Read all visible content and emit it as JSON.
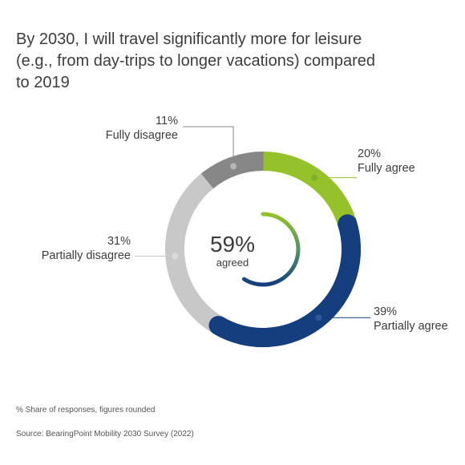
{
  "title_lines": [
    "By 2030, I will travel significantly more for leisure",
    "(e.g., from day-trips to longer vacations) compared",
    "to 2019"
  ],
  "center": {
    "value": "59%",
    "caption": "agreed",
    "fraction": 0.59
  },
  "footnote": "% Share of responses, figures rounded",
  "source": "Source: BearingPoint Mobility 2030 Survey (2022)",
  "chart_data": {
    "type": "pie",
    "donut": true,
    "slices": [
      {
        "label": "Fully agree",
        "pct_label": "20%",
        "value": 20,
        "color": "#95c22b"
      },
      {
        "label": "Partially agree",
        "pct_label": "39%",
        "value": 39,
        "color": "#153e7e"
      },
      {
        "label": "Partially disagree",
        "pct_label": "31%",
        "value": 31,
        "color": "#c8c8c8"
      },
      {
        "label": "Fully disagree",
        "pct_label": "11%",
        "value": 11,
        "color": "#878787"
      }
    ]
  }
}
